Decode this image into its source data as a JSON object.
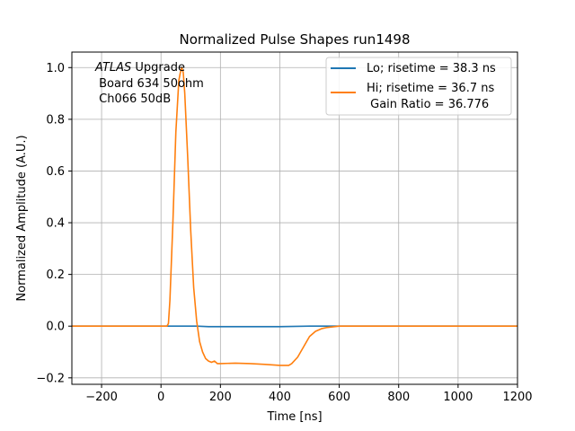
{
  "chart_data": {
    "type": "line",
    "title": "Normalized Pulse Shapes run1498",
    "xlabel": "Time [ns]",
    "ylabel": "Normalized Amplitude (A.U.)",
    "xlim": [
      -300,
      1200
    ],
    "ylim": [
      -0.225,
      1.06
    ],
    "xticks": [
      -200,
      0,
      200,
      400,
      600,
      800,
      1000,
      1200
    ],
    "yticks": [
      -0.2,
      0.0,
      0.2,
      0.4,
      0.6,
      0.8,
      1.0
    ],
    "xtick_labels": [
      "−200",
      "0",
      "200",
      "400",
      "600",
      "800",
      "1000",
      "1200"
    ],
    "ytick_labels": [
      "−0.2",
      "0.0",
      "0.2",
      "0.4",
      "0.6",
      "0.8",
      "1.0"
    ],
    "grid": true,
    "legend_position": "top-right",
    "annotation": {
      "line1_italic": "ATLAS",
      "line1_rest": " Upgrade",
      "line2": " Board 634 50ohm",
      "line3": " Ch066 50dB"
    },
    "series": [
      {
        "name": "Lo; risetime = 38.3 ns",
        "color": "#1f77b4",
        "x": [
          -300,
          0,
          20,
          40,
          80,
          120,
          160,
          200,
          300,
          400,
          500,
          600,
          700,
          800,
          900,
          1000,
          1100,
          1200
        ],
        "y": [
          0.0,
          0.0,
          0.0,
          0.0,
          0.0,
          0.0,
          -0.002,
          -0.002,
          -0.002,
          -0.002,
          0.0,
          0.0,
          0.0,
          0.0,
          0.0,
          0.0,
          0.0,
          0.0
        ]
      },
      {
        "name": "Hi; risetime = 36.7 ns",
        "name_line2": " Gain Ratio = 36.776",
        "color": "#ff7f0e",
        "x": [
          -300,
          0,
          20,
          25,
          30,
          40,
          50,
          60,
          65,
          70,
          75,
          80,
          90,
          100,
          110,
          120,
          130,
          140,
          150,
          160,
          170,
          180,
          190,
          200,
          250,
          300,
          350,
          400,
          420,
          430,
          440,
          460,
          480,
          500,
          510,
          520,
          540,
          560,
          600,
          700,
          800,
          900,
          1000,
          1100,
          1200
        ],
        "y": [
          0.0,
          0.0,
          0.0,
          0.01,
          0.1,
          0.4,
          0.75,
          0.95,
          0.98,
          1.0,
          0.98,
          0.9,
          0.65,
          0.37,
          0.15,
          0.02,
          -0.06,
          -0.1,
          -0.125,
          -0.135,
          -0.14,
          -0.135,
          -0.145,
          -0.145,
          -0.143,
          -0.145,
          -0.148,
          -0.152,
          -0.152,
          -0.152,
          -0.145,
          -0.12,
          -0.08,
          -0.04,
          -0.03,
          -0.02,
          -0.01,
          -0.005,
          0.0,
          0.0,
          0.0,
          0.0,
          0.0,
          0.0,
          0.0
        ]
      }
    ]
  }
}
